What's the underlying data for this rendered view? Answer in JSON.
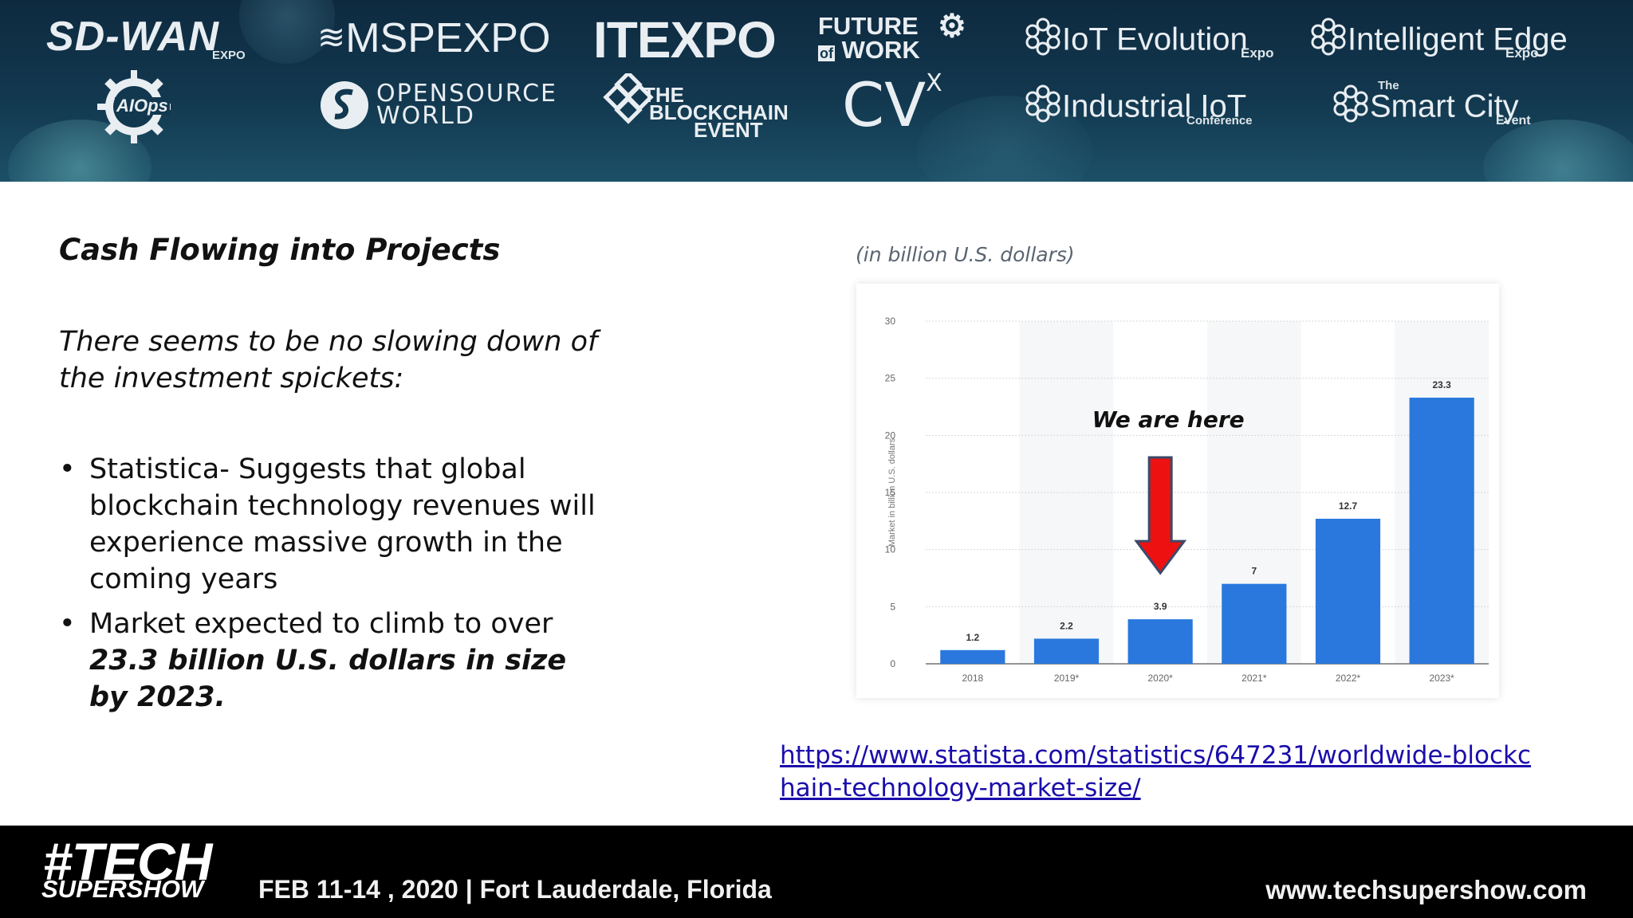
{
  "banner": {
    "logos": {
      "sdwan": {
        "name": "SD-WAN",
        "sub": "EXPO"
      },
      "mspexpo": {
        "name": "MSPEXPO"
      },
      "itexpo": {
        "name": "ITEXPO"
      },
      "futurework": {
        "line1": "FUTURE",
        "line2": "WORK",
        "of": "of"
      },
      "iotevolution": {
        "name": "IoT Evolution",
        "sub": "Expo"
      },
      "intelligentedge": {
        "name": "Intelligent Edge",
        "sub": "Expo"
      },
      "aiops": {
        "name": "AIOps"
      },
      "opensource": {
        "line1": "OPENSOURCE",
        "line2": "WORLD"
      },
      "blockchain": {
        "line1": "THE",
        "line2": "BLOCKCHAIN",
        "line3": "EVENT"
      },
      "cvx": {
        "name": "CV",
        "sup": "X"
      },
      "industrialiot": {
        "name": "Industrial IoT",
        "sub": "Conference"
      },
      "smartcity": {
        "name": "Smart City",
        "sup": "The",
        "sub": "Event"
      }
    }
  },
  "slide": {
    "heading": "Cash Flowing into Projects",
    "intro_line1": "There seems to be no slowing down of",
    "intro_line2": "the investment spickets:",
    "bullets": {
      "b1": "Statistica- Suggests that global blockchain technology revenues will experience massive growth in the coming years",
      "b2_plain": "Market expected to climb to over ",
      "b2_emph": "23.3 billion U.S. dollars in size by 2023."
    },
    "link": "https://www.statista.com/statistics/647231/worldwide-blockchain-technology-market-size/"
  },
  "chart_data": {
    "type": "bar",
    "subtitle": "(in billion U.S. dollars)",
    "ylabel": "Market in billion U.S. dollars",
    "categories": [
      "2018",
      "2019*",
      "2020*",
      "2021*",
      "2022*",
      "2023*"
    ],
    "values": [
      1.2,
      2.2,
      3.9,
      7,
      12.7,
      23.3
    ],
    "value_labels": [
      "1.2",
      "2.2",
      "3.9",
      "7",
      "12.7",
      "23.3"
    ],
    "ylim": [
      0,
      30
    ],
    "yticks": [
      0,
      5,
      10,
      15,
      20,
      25,
      30
    ],
    "grid": true,
    "bar_color": "#2a78dd",
    "annotation": {
      "text": "We are here",
      "category": "2020*",
      "arrow_color": "#ee1111"
    }
  },
  "footer": {
    "brand_line1": "#TECH",
    "brand_line2": "SUPERSHOW",
    "event_info": "FEB 11-14 , 2020 | Fort Lauderdale, Florida",
    "website": "www.techsupershow.com"
  }
}
